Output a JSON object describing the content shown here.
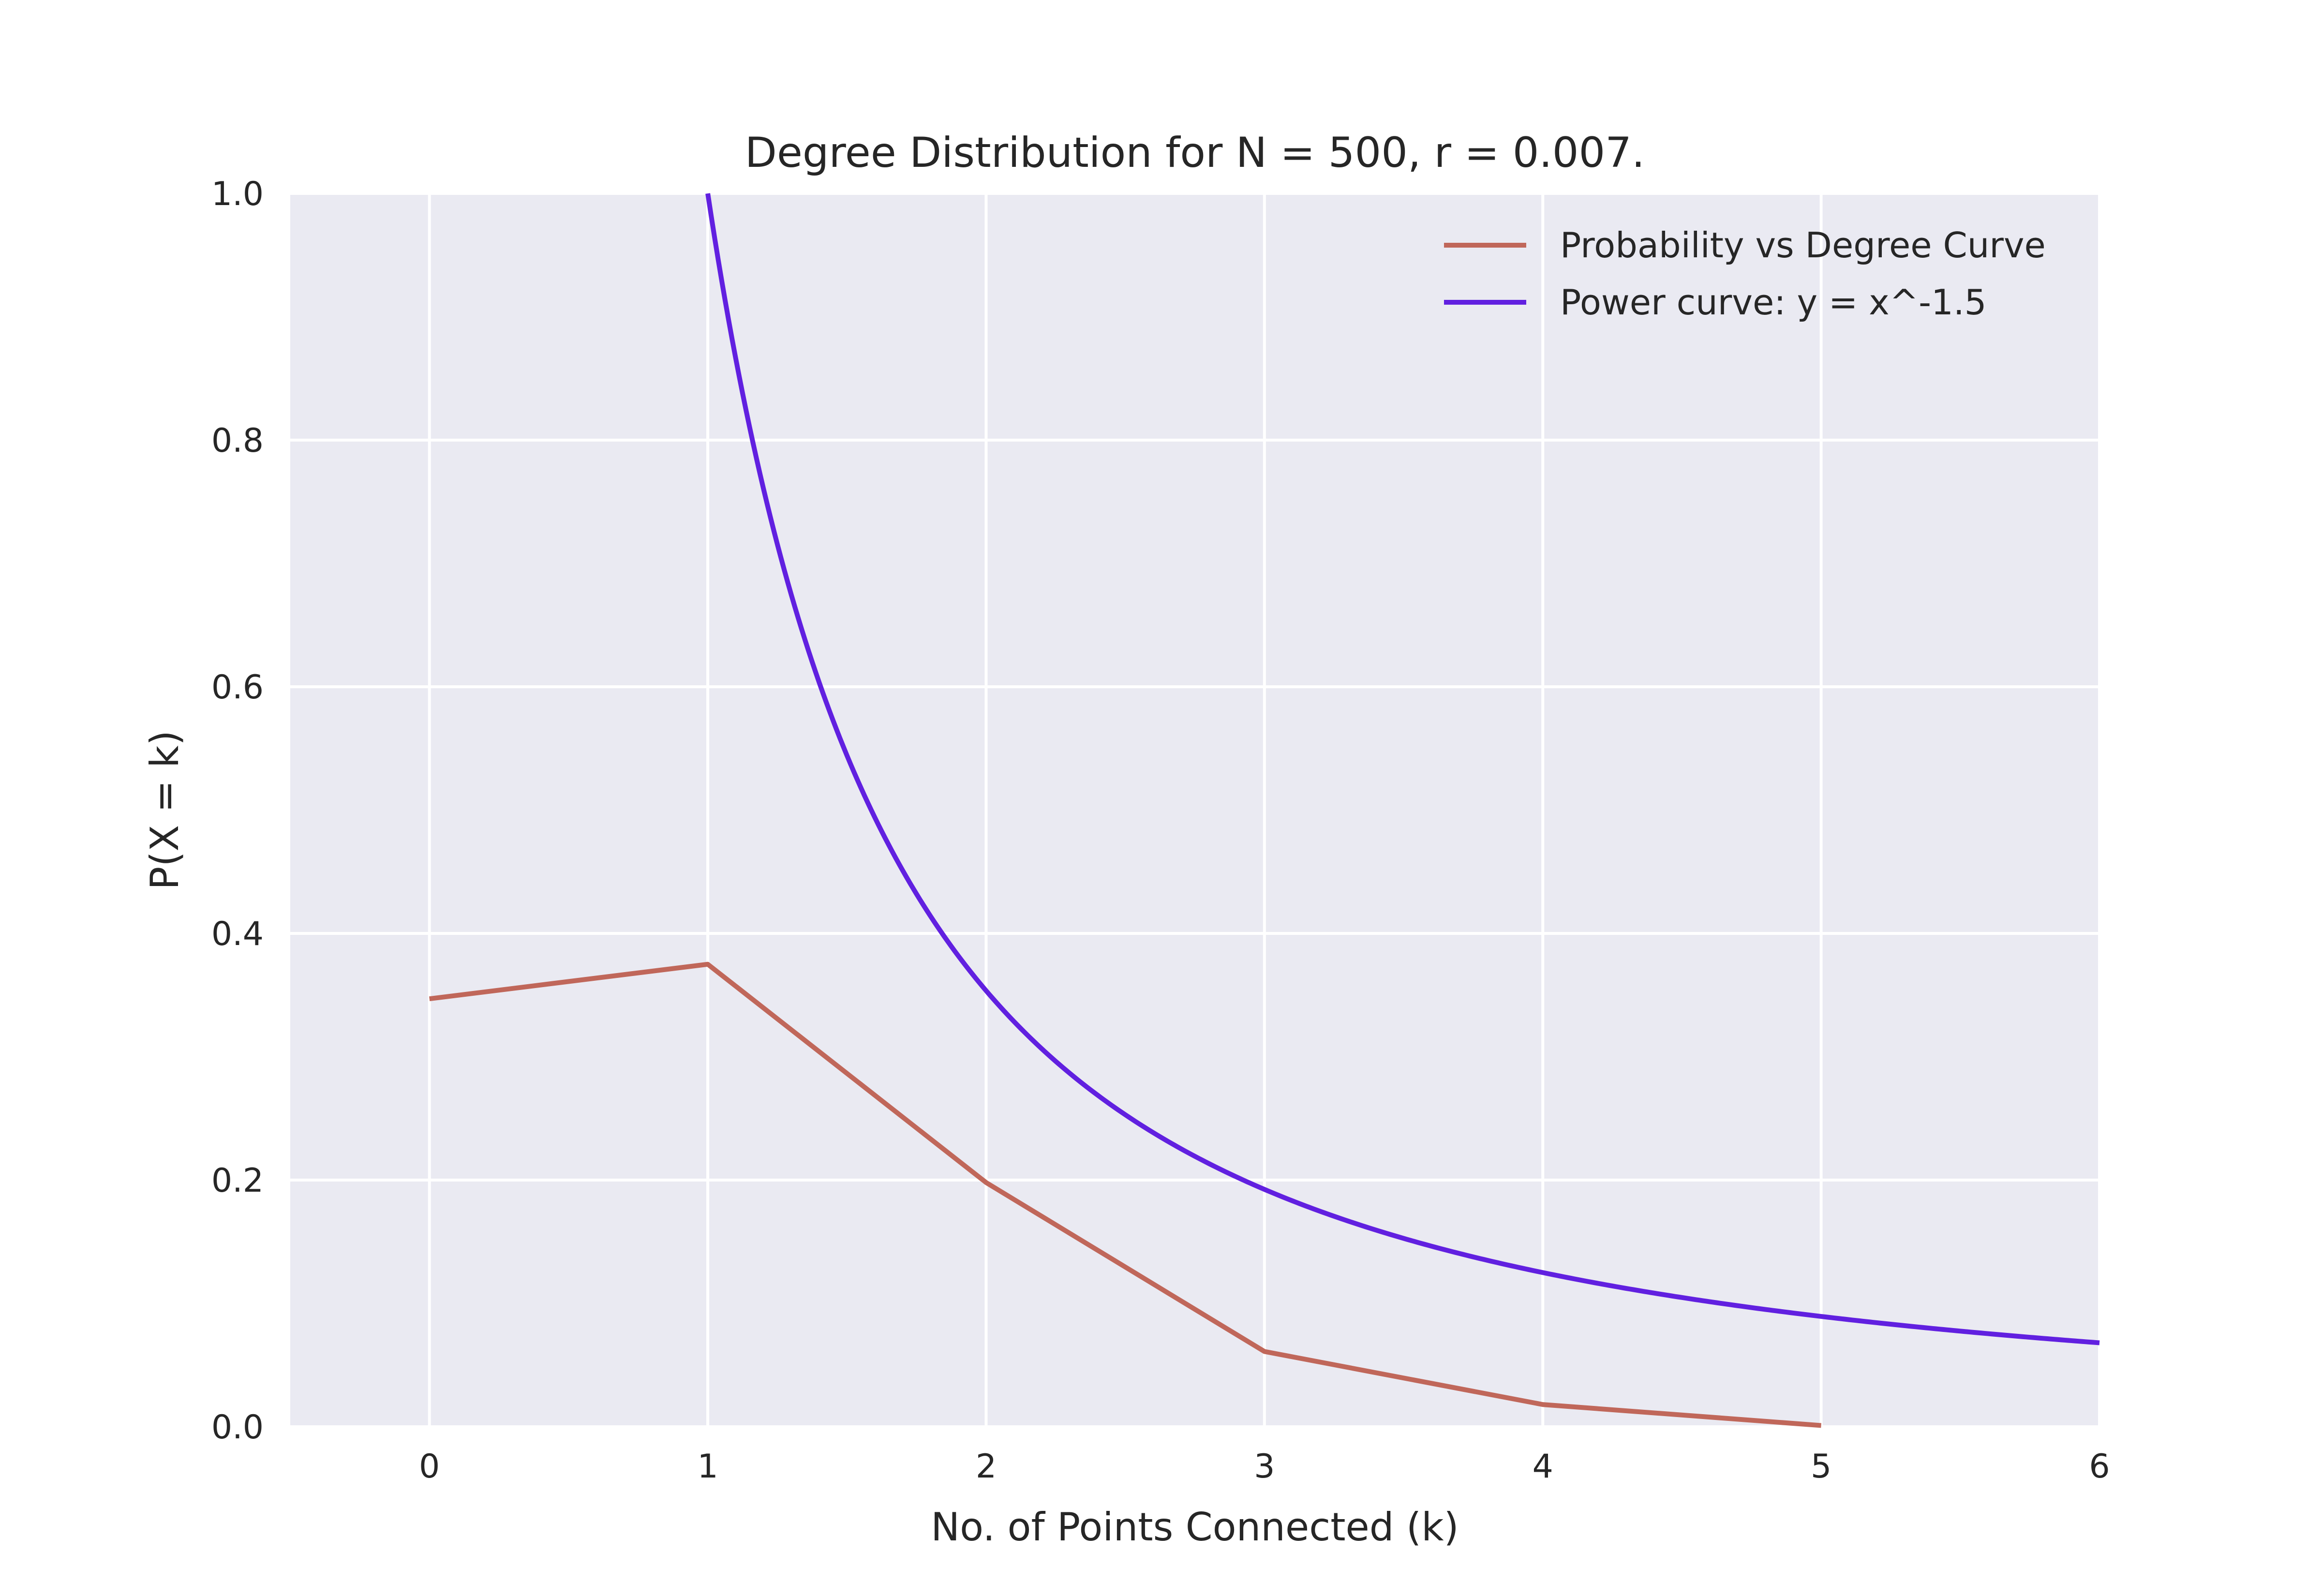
{
  "chart_data": {
    "type": "line",
    "title": "Degree Distribution for N = 500, r = 0.007.",
    "xlabel": "No. of Points Connected (k)",
    "ylabel": "P(X = k)",
    "xlim": [
      -0.5,
      6
    ],
    "ylim": [
      0,
      1
    ],
    "xticks": [
      0,
      1,
      2,
      3,
      4,
      5,
      6
    ],
    "xtick_labels": [
      "0",
      "1",
      "2",
      "3",
      "4",
      "5",
      "6"
    ],
    "yticks": [
      0,
      0.2,
      0.4,
      0.6,
      0.8,
      1.0
    ],
    "ytick_labels": [
      "0.0",
      "0.2",
      "0.4",
      "0.6",
      "0.8",
      "1.0"
    ],
    "grid": true,
    "legend_position": "top-right",
    "background_color": "#eaeaf2",
    "series": [
      {
        "name": "Probability vs Degree Curve",
        "color": "#c0675a",
        "x": [
          0,
          1,
          2,
          3,
          4,
          5
        ],
        "y": [
          0.347,
          0.375,
          0.198,
          0.061,
          0.018,
          0.001
        ]
      },
      {
        "name": "Power curve: y = x^-1.5",
        "color": "#6120e0",
        "function": "x^-1.5",
        "x_range": [
          1,
          6
        ]
      }
    ]
  }
}
